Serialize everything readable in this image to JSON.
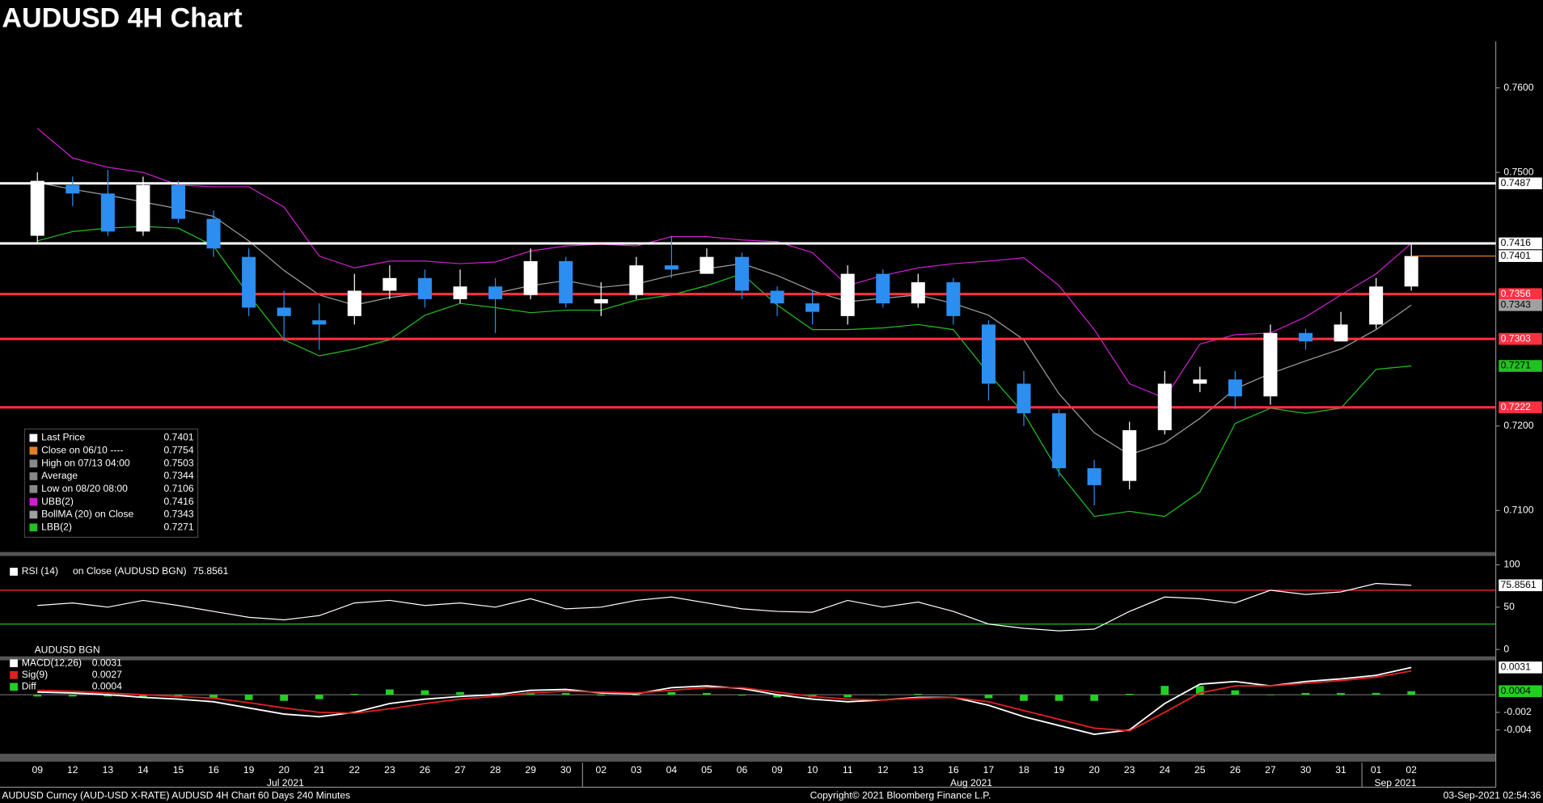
{
  "title": "AUDUSD 4H Chart",
  "chart_data": [
    {
      "type": "candlestick",
      "categories": [
        "09",
        "12",
        "13",
        "14",
        "15",
        "16",
        "19",
        "20",
        "21",
        "22",
        "23",
        "26",
        "27",
        "28",
        "29",
        "30",
        "02",
        "03",
        "04",
        "05",
        "06",
        "09",
        "10",
        "11",
        "12",
        "13",
        "16",
        "17",
        "18",
        "19",
        "20",
        "23",
        "24",
        "25",
        "26",
        "27",
        "30",
        "31",
        "01",
        "02"
      ],
      "months": [
        "Jul 2021",
        "Aug 2021",
        "Sep 2021"
      ],
      "open": [
        0.7425,
        0.7485,
        0.7475,
        0.743,
        0.7485,
        0.7445,
        0.74,
        0.734,
        0.7325,
        0.733,
        0.736,
        0.7375,
        0.735,
        0.7365,
        0.7355,
        0.7395,
        0.7345,
        0.7355,
        0.739,
        0.738,
        0.74,
        0.736,
        0.7345,
        0.733,
        0.738,
        0.7345,
        0.737,
        0.732,
        0.725,
        0.7215,
        0.715,
        0.7135,
        0.7195,
        0.725,
        0.7255,
        0.7235,
        0.731,
        0.73,
        0.732,
        0.7365
      ],
      "high": [
        0.75,
        0.7495,
        0.7503,
        0.7495,
        0.749,
        0.7455,
        0.741,
        0.736,
        0.7345,
        0.738,
        0.739,
        0.7385,
        0.7385,
        0.7375,
        0.741,
        0.74,
        0.737,
        0.74,
        0.7425,
        0.741,
        0.7405,
        0.7365,
        0.736,
        0.739,
        0.7385,
        0.738,
        0.7375,
        0.7325,
        0.7265,
        0.722,
        0.716,
        0.7205,
        0.7265,
        0.727,
        0.7265,
        0.732,
        0.7315,
        0.7335,
        0.7375,
        0.7416
      ],
      "low": [
        0.7415,
        0.746,
        0.7425,
        0.7425,
        0.744,
        0.74,
        0.733,
        0.73,
        0.729,
        0.732,
        0.735,
        0.734,
        0.7345,
        0.731,
        0.735,
        0.734,
        0.733,
        0.735,
        0.7375,
        0.738,
        0.735,
        0.733,
        0.732,
        0.732,
        0.734,
        0.734,
        0.732,
        0.723,
        0.72,
        0.714,
        0.7106,
        0.7125,
        0.719,
        0.724,
        0.722,
        0.7225,
        0.729,
        0.73,
        0.7315,
        0.736
      ],
      "close": [
        0.749,
        0.7475,
        0.743,
        0.7485,
        0.7445,
        0.741,
        0.734,
        0.733,
        0.732,
        0.736,
        0.7375,
        0.735,
        0.7365,
        0.735,
        0.7395,
        0.7345,
        0.735,
        0.739,
        0.7385,
        0.74,
        0.736,
        0.7345,
        0.7335,
        0.738,
        0.7345,
        0.737,
        0.733,
        0.725,
        0.7215,
        0.715,
        0.713,
        0.7195,
        0.725,
        0.7255,
        0.7235,
        0.731,
        0.73,
        0.732,
        0.7365,
        0.7401
      ],
      "color_up": "#ffffff",
      "color_down": "#2b8ef0",
      "series": [
        {
          "name": "UBB(2)",
          "color": "#d01fd0",
          "values": [
            0.7552,
            0.7517,
            0.7506,
            0.75,
            0.7485,
            0.7483,
            0.7483,
            0.7459,
            0.7401,
            0.7387,
            0.7395,
            0.7395,
            0.7392,
            0.7394,
            0.7407,
            0.7413,
            0.7415,
            0.7413,
            0.7424,
            0.7424,
            0.742,
            0.7418,
            0.7405,
            0.7366,
            0.7378,
            0.7387,
            0.7392,
            0.7395,
            0.7399,
            0.7366,
            0.7314,
            0.725,
            0.7233,
            0.7297,
            0.7308,
            0.731,
            0.7329,
            0.7355,
            0.738,
            0.7416
          ]
        },
        {
          "name": "BollMA (20)",
          "color": "#a0a0a0",
          "values": [
            0.7488,
            0.748,
            0.7473,
            0.7465,
            0.7457,
            0.7448,
            0.7419,
            0.7384,
            0.7355,
            0.7343,
            0.7352,
            0.7357,
            0.7355,
            0.7357,
            0.7366,
            0.7372,
            0.7364,
            0.7368,
            0.7378,
            0.7386,
            0.7392,
            0.7378,
            0.736,
            0.7347,
            0.7351,
            0.7355,
            0.7345,
            0.7331,
            0.7302,
            0.7238,
            0.7192,
            0.7166,
            0.718,
            0.7209,
            0.7244,
            0.7262,
            0.7277,
            0.7291,
            0.7314,
            0.7343
          ]
        },
        {
          "name": "LBB(2)",
          "color": "#22c022",
          "values": [
            0.7419,
            0.743,
            0.7434,
            0.7436,
            0.7434,
            0.7413,
            0.7355,
            0.7302,
            0.7283,
            0.7291,
            0.7302,
            0.7331,
            0.7345,
            0.734,
            0.7334,
            0.7337,
            0.7337,
            0.7349,
            0.7355,
            0.7366,
            0.738,
            0.7343,
            0.7314,
            0.7314,
            0.7316,
            0.732,
            0.7314,
            0.7262,
            0.7215,
            0.7145,
            0.7093,
            0.7099,
            0.7093,
            0.7122,
            0.7203,
            0.7221,
            0.7215,
            0.7221,
            0.7267,
            0.7271
          ]
        }
      ],
      "levels": [
        {
          "value": 0.7487,
          "color": "#ffffff"
        },
        {
          "value": 0.7416,
          "color": "#ffffff"
        },
        {
          "value": 0.7356,
          "color": "#ff3040"
        },
        {
          "value": 0.7303,
          "color": "#ff3040"
        },
        {
          "value": 0.7222,
          "color": "#ff3040"
        }
      ],
      "markers": [
        {
          "value": 0.7401,
          "color": "#ffffff",
          "line": "#e08020"
        },
        {
          "value": 0.7343,
          "color": "#a0a0a0"
        },
        {
          "value": 0.7271,
          "color": "#22c022"
        }
      ],
      "ylim": [
        0.7052,
        0.7655
      ],
      "yticks": [
        {
          "value": 0.76,
          "label": "0.7600"
        },
        {
          "value": 0.75,
          "label": "0.7500"
        },
        {
          "value": 0.72,
          "label": "0.7200"
        },
        {
          "value": 0.71,
          "label": "0.7100"
        }
      ],
      "legend": [
        {
          "label": "Last Price",
          "value": 0.7401,
          "color": "#ffffff"
        },
        {
          "label": "Close on 06/10 ----",
          "value": 0.7754,
          "color": "#e08020"
        },
        {
          "label": "High on 07/13 04:00",
          "value": 0.7503,
          "color": "#888888"
        },
        {
          "label": "Average",
          "value": 0.7344,
          "color": "#888888"
        },
        {
          "label": "Low on 08/20 08:00",
          "value": 0.7106,
          "color": "#888888"
        },
        {
          "label": "UBB(2)",
          "value": 0.7416,
          "color": "#d01fd0"
        },
        {
          "label": "BollMA (20)  on Close",
          "value": 0.7343,
          "color": "#a0a0a0"
        },
        {
          "label": "LBB(2)",
          "value": 0.7271,
          "color": "#22c022"
        }
      ]
    },
    {
      "type": "line",
      "title": "RSI (14)",
      "subtitle": "on Close (AUDUSD BGN)",
      "series": [
        {
          "name": "RSI (14)",
          "color": "#ffffff",
          "values": [
            52,
            55,
            50,
            58,
            52,
            45,
            38,
            35,
            40,
            55,
            58,
            52,
            55,
            50,
            60,
            48,
            50,
            58,
            62,
            55,
            48,
            45,
            44,
            58,
            50,
            56,
            45,
            30,
            25,
            22,
            24,
            45,
            62,
            60,
            55,
            70,
            65,
            68,
            78,
            75.8561
          ]
        }
      ],
      "reference_lines": [
        {
          "value": 70,
          "color": "#ff3040"
        },
        {
          "value": 30,
          "color": "#22c022"
        }
      ],
      "ylim": [
        -9.3,
        109.3
      ],
      "yticks": [
        0,
        50,
        100
      ]
    },
    {
      "type": "macd",
      "title": "AUDUSD BGN",
      "series": [
        {
          "name": "MACD(12,26)",
          "color": "#ffffff",
          "values": [
            0.0003,
            0.0002,
            0,
            -0.0003,
            -0.0005,
            -0.0008,
            -0.0015,
            -0.0022,
            -0.0025,
            -0.002,
            -0.001,
            -0.0005,
            -0.0002,
            0,
            0.0005,
            0.0006,
            0.0002,
            0.0001,
            0.0008,
            0.001,
            0.0007,
            0,
            -0.0005,
            -0.0008,
            -0.0006,
            -0.0003,
            -0.0003,
            -0.0012,
            -0.0025,
            -0.0035,
            -0.0045,
            -0.004,
            -0.001,
            0.0012,
            0.0015,
            0.001,
            0.0015,
            0.0018,
            0.0022,
            0.0031
          ]
        },
        {
          "name": "Sig(9)",
          "color": "#e02020",
          "values": [
            0.0005,
            0.0004,
            0.0002,
            0,
            -0.0002,
            -0.0004,
            -0.0009,
            -0.0015,
            -0.002,
            -0.0021,
            -0.0016,
            -0.001,
            -0.0005,
            -0.0002,
            0.0002,
            0.0004,
            0.0003,
            0.0002,
            0.0005,
            0.0008,
            0.0008,
            0.0003,
            -0.0002,
            -0.0005,
            -0.0006,
            -0.0004,
            -0.0003,
            -0.0008,
            -0.0018,
            -0.0028,
            -0.0038,
            -0.0041,
            -0.002,
            0.0002,
            0.001,
            0.001,
            0.0013,
            0.0016,
            0.002,
            0.0027
          ]
        },
        {
          "name": "Diff",
          "color": "#22d022",
          "values": [
            -0.0002,
            -0.0002,
            -0.0002,
            -0.0003,
            -0.0003,
            -0.0004,
            -0.0006,
            -0.0007,
            -0.0005,
            0.0001,
            0.0006,
            0.0005,
            0.0003,
            0.0002,
            0.0003,
            0.0002,
            -0.0001,
            -0.0001,
            0.0003,
            0.0002,
            -0.0001,
            -0.0003,
            -0.0003,
            -0.0003,
            0,
            0.0001,
            0,
            -0.0004,
            -0.0007,
            -0.0007,
            -0.0007,
            0.0001,
            0.001,
            0.001,
            0.0005,
            0,
            0.0002,
            0.0002,
            0.0002,
            0.0004
          ]
        }
      ],
      "ylim": [
        -0.0066,
        0.0038
      ],
      "yticks": [
        -0.002,
        -0.004
      ]
    }
  ],
  "footer": {
    "left": "AUDUSD Curncy (AUD-USD X-RATE) AUDUSD 4H Chart 60 Days 240 Minutes",
    "center": "Copyright© 2021 Bloomberg Finance L.P.",
    "right": "03-Sep-2021 02:54:36"
  }
}
